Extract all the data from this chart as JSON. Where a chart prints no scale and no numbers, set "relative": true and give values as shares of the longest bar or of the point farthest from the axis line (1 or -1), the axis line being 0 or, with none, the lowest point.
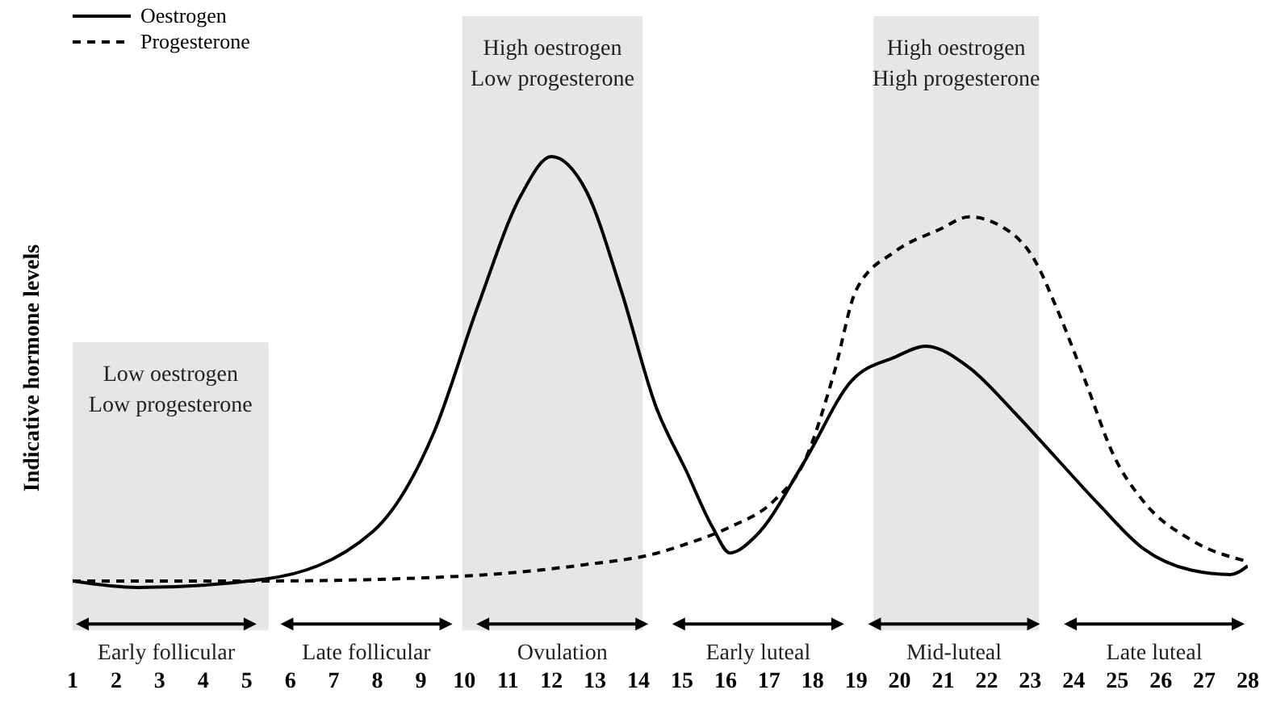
{
  "chart_data": {
    "type": "line",
    "relative": true,
    "ylabel": "Indicative hormone levels",
    "xlim": [
      1,
      28
    ],
    "xticks": [
      1,
      2,
      3,
      4,
      5,
      6,
      7,
      8,
      9,
      10,
      11,
      12,
      13,
      14,
      15,
      16,
      17,
      18,
      19,
      20,
      21,
      22,
      23,
      24,
      25,
      26,
      27,
      28
    ],
    "legend": "top left",
    "series": [
      {
        "name": "Oestrogen",
        "color": "#000000",
        "line_style": "solid",
        "x": [
          1,
          2.5,
          5.4,
          7.9,
          9.3,
          10.3,
          11.3,
          12,
          12.8,
          13.6,
          14.4,
          15.1,
          15.7,
          16.1,
          16.7,
          17.8,
          18.9,
          19.9,
          20.6,
          21.6,
          22.6,
          23.6,
          24.6,
          25.6,
          26.7,
          27.6,
          28
        ],
        "values": [
          0.015,
          0,
          0.019,
          0.13,
          0.36,
          0.65,
          0.91,
          1,
          0.92,
          0.69,
          0.42,
          0.27,
          0.14,
          0.08,
          0.12,
          0.29,
          0.48,
          0.535,
          0.56,
          0.51,
          0.41,
          0.3,
          0.19,
          0.09,
          0.04,
          0.03,
          0.05
        ]
      },
      {
        "name": "Progesterone",
        "color": "#000000",
        "line_style": "dashed",
        "x": [
          1,
          5.4,
          9.9,
          12.7,
          14.4,
          15.1,
          16.1,
          17.1,
          17.8,
          18.5,
          19,
          19.9,
          20.9,
          21.6,
          22.3,
          23.1,
          23.6,
          24.3,
          24.9,
          25.6,
          26.7,
          28
        ],
        "values": [
          0.015,
          0.015,
          0.026,
          0.052,
          0.079,
          0.101,
          0.14,
          0.2,
          0.29,
          0.5,
          0.69,
          0.78,
          0.83,
          0.86,
          0.84,
          0.76,
          0.65,
          0.47,
          0.31,
          0.2,
          0.11,
          0.06
        ]
      }
    ],
    "bands": [
      {
        "axis": "x",
        "from": 1,
        "to": 5.5,
        "label": "Low oestrogen\nLow progesterone",
        "color": "#e6e6e6"
      },
      {
        "axis": "x",
        "from": 9.95,
        "to": 14.1,
        "label": "High oestrogen\nLow progesterone",
        "color": "#e6e6e6"
      },
      {
        "axis": "x",
        "from": 19.4,
        "to": 23.2,
        "label": "High oestrogen\nHigh progesterone",
        "color": "#e6e6e6"
      }
    ],
    "annotations": [
      "Early follicular",
      "Late follicular",
      "Ovulation",
      "Early luteal",
      "Mid-luteal",
      "Late luteal"
    ]
  }
}
